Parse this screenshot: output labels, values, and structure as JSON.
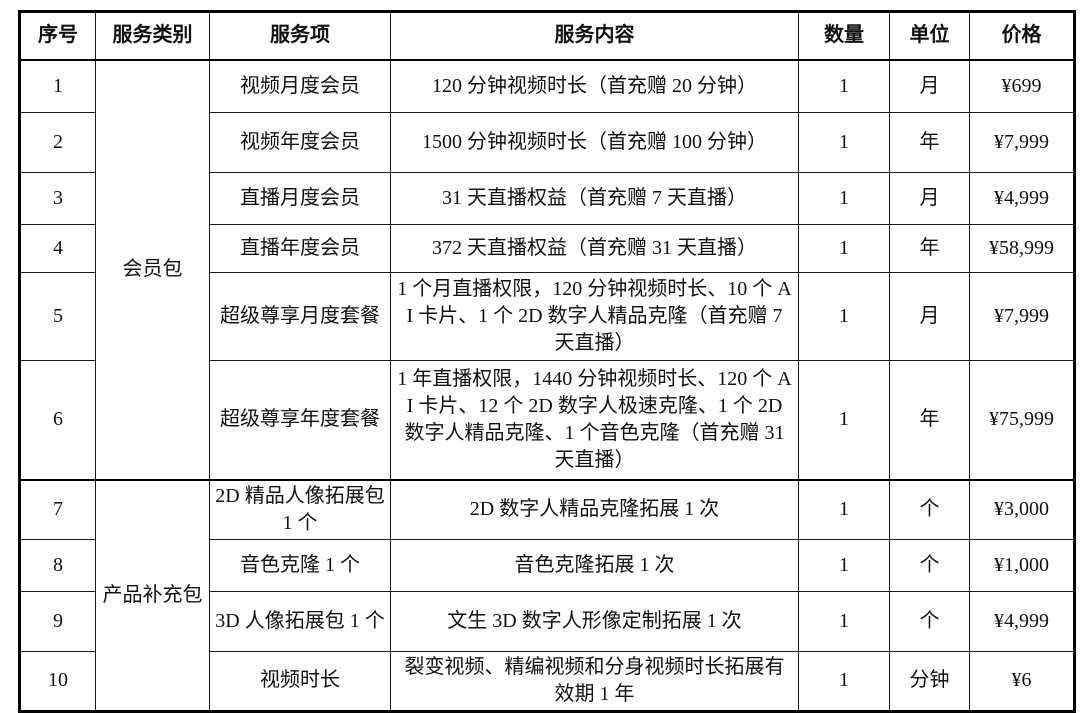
{
  "table": {
    "headers": [
      "序号",
      "服务类别",
      "服务项",
      "服务内容",
      "数量",
      "单位",
      "价格"
    ],
    "rows": [
      {
        "no": "1",
        "category": {
          "label": "会员包",
          "rowspan": 6
        },
        "item": "视频月度会员",
        "content": "120 分钟视频时长（首充赠 20 分钟）",
        "qty": "1",
        "unit": "月",
        "price": "¥699"
      },
      {
        "no": "2",
        "item": "视频年度会员",
        "content": "1500 分钟视频时长（首充赠 100 分钟）",
        "qty": "1",
        "unit": "年",
        "price": "¥7,999"
      },
      {
        "no": "3",
        "item": "直播月度会员",
        "content": "31 天直播权益（首充赠 7 天直播）",
        "qty": "1",
        "unit": "月",
        "price": "¥4,999"
      },
      {
        "no": "4",
        "item": "直播年度会员",
        "content": "372 天直播权益（首充赠 31 天直播）",
        "qty": "1",
        "unit": "年",
        "price": "¥58,999"
      },
      {
        "no": "5",
        "item": "超级尊享月度套餐",
        "content": "1 个月直播权限，120 分钟视频时长、10 个 AI 卡片、1 个 2D 数字人精品克隆（首充赠 7 天直播）",
        "qty": "1",
        "unit": "月",
        "price": "¥7,999"
      },
      {
        "no": "6",
        "item": "超级尊享年度套餐",
        "content": "1 年直播权限，1440 分钟视频时长、120 个 AI 卡片、12 个 2D 数字人极速克隆、1 个 2D 数字人精品克隆、1 个音色克隆（首充赠 31 天直播）",
        "qty": "1",
        "unit": "年",
        "price": "¥75,999"
      },
      {
        "no": "7",
        "category": {
          "label": "产品补充包",
          "rowspan": 4
        },
        "section_start": true,
        "item": "2D 精品人像拓展包 1 个",
        "content": "2D 数字人精品克隆拓展 1 次",
        "qty": "1",
        "unit": "个",
        "price": "¥3,000"
      },
      {
        "no": "8",
        "item": "音色克隆 1 个",
        "content": "音色克隆拓展 1 次",
        "qty": "1",
        "unit": "个",
        "price": "¥1,000"
      },
      {
        "no": "9",
        "item": "3D 人像拓展包 1 个",
        "content": "文生 3D 数字人形像定制拓展 1 次",
        "qty": "1",
        "unit": "个",
        "price": "¥4,999"
      },
      {
        "no": "10",
        "item": "视频时长",
        "content": "裂变视频、精编视频和分身视频时长拓展有效期 1 年",
        "qty": "1",
        "unit": "分钟",
        "price": "¥6"
      }
    ]
  }
}
